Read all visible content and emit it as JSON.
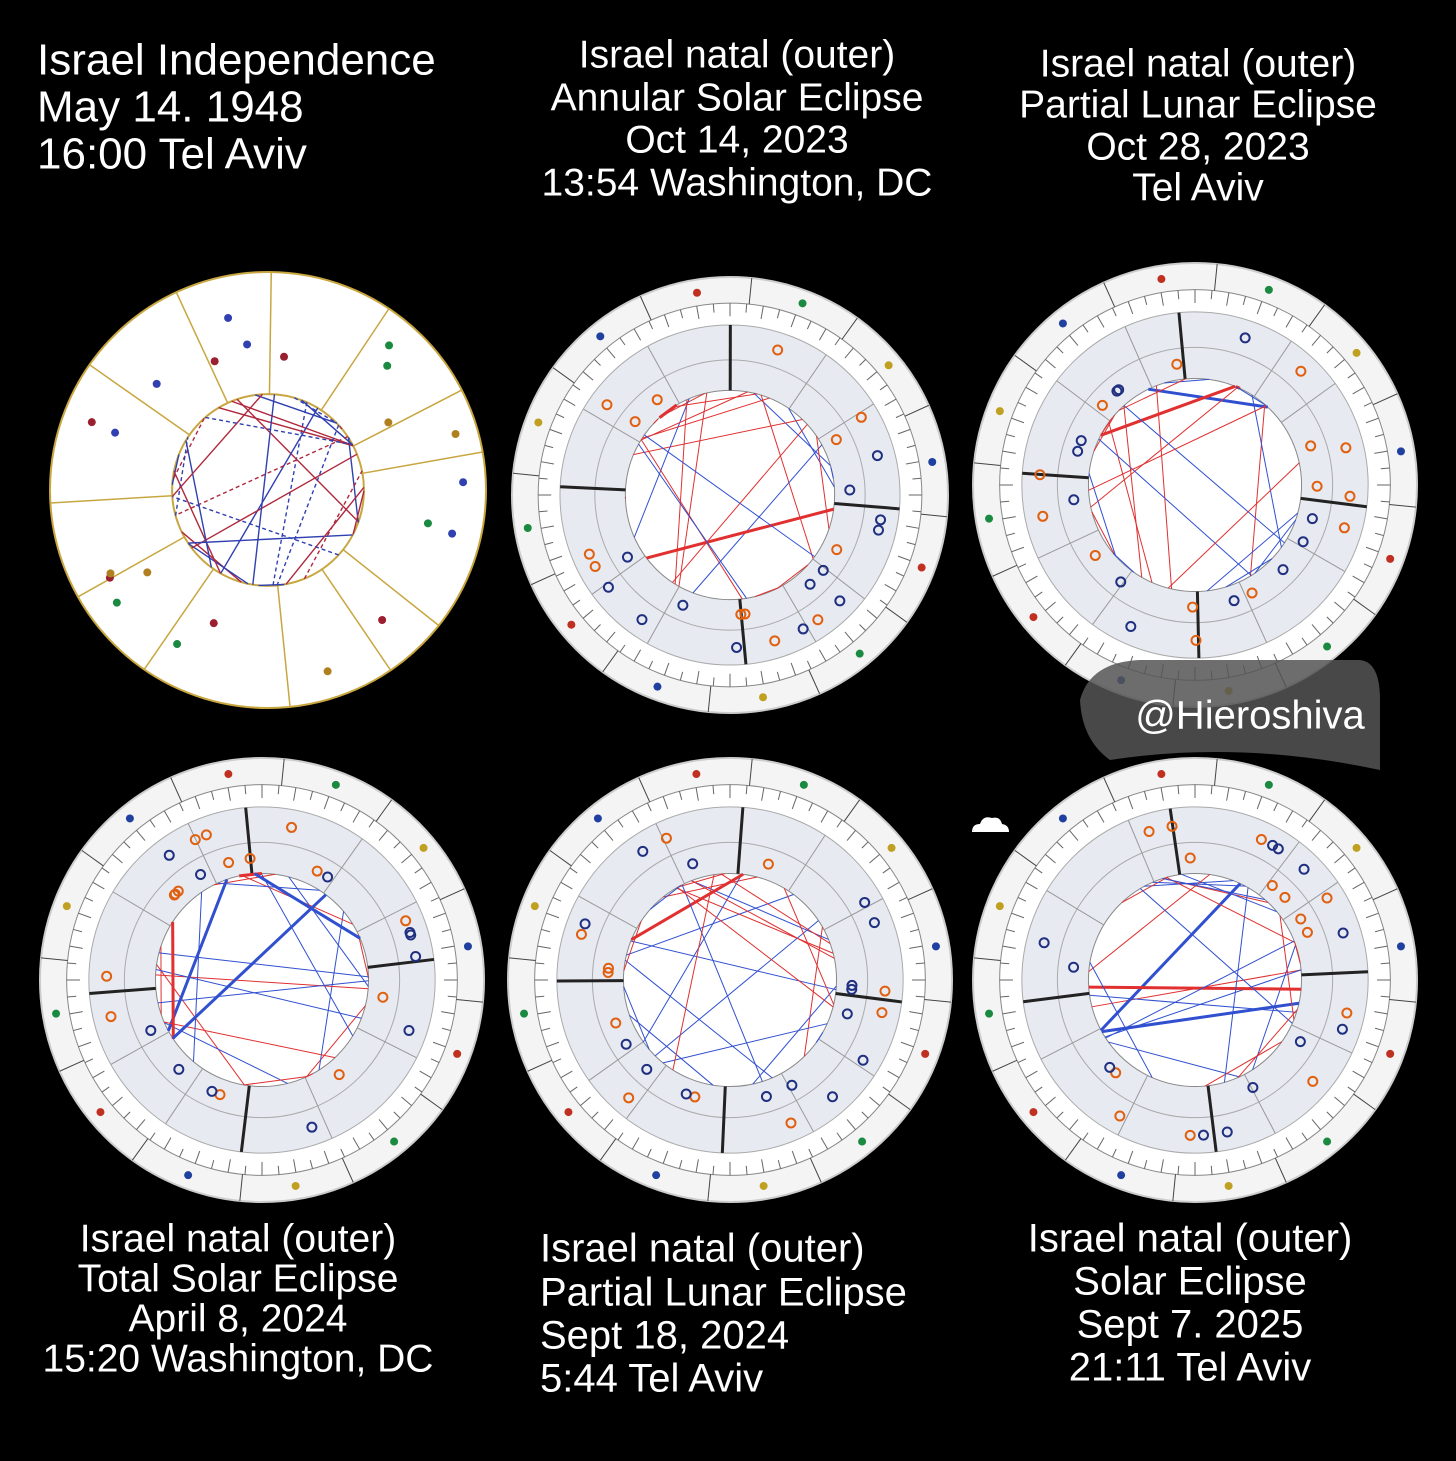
{
  "panels": [
    {
      "lines": [
        "Israel Independence",
        "May 14. 1948",
        "16:00 Tel Aviv"
      ]
    },
    {
      "lines": [
        "Israel natal (outer)",
        "Annular Solar Eclipse",
        "Oct 14, 2023",
        "13:54 Washington, DC"
      ]
    },
    {
      "lines": [
        "Israel natal (outer)",
        "Partial Lunar Eclipse",
        "Oct 28, 2023",
        "Tel Aviv"
      ]
    },
    {
      "lines": [
        "Israel natal  (outer)",
        "Total Solar Eclipse",
        "April 8, 2024",
        "15:20 Washington, DC"
      ]
    },
    {
      "lines": [
        "Israel natal (outer)",
        "Partial Lunar Eclipse",
        "Sept 18, 2024",
        "5:44 Tel Aviv"
      ]
    },
    {
      "lines": [
        "Israel natal (outer)",
        "Solar Eclipse",
        "Sept 7. 2025",
        "21:11 Tel Aviv"
      ]
    }
  ],
  "watermark": "@Hieroshiva"
}
